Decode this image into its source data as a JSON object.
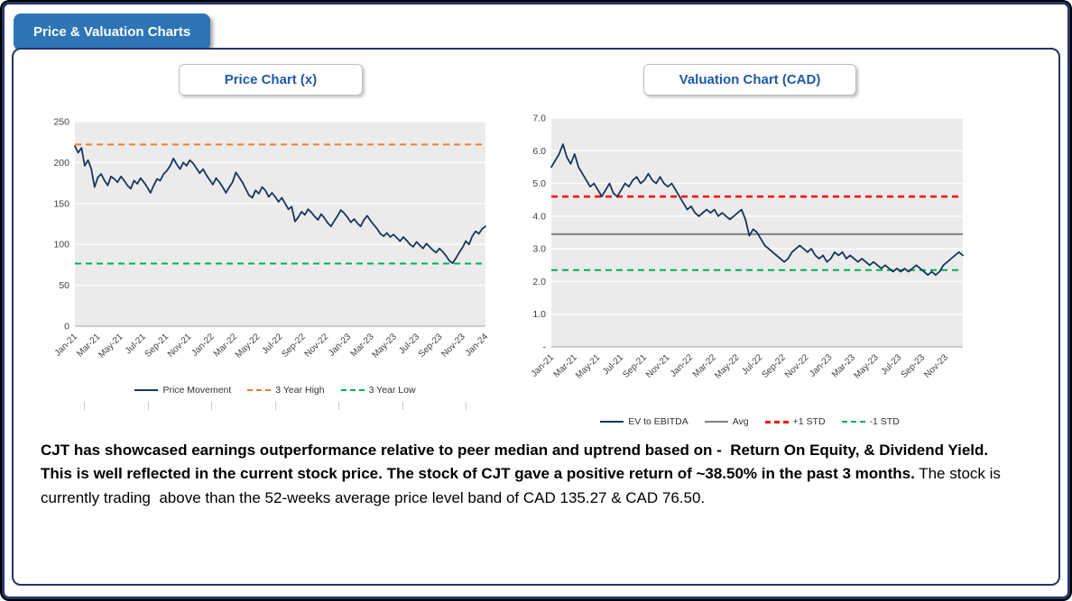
{
  "badge_label": "Price & Valuation Charts",
  "colors": {
    "accent_blue": "#2E75B6",
    "title_blue": "#1F5AA8",
    "border_navy": "#24356B",
    "series_navy": "#16365C",
    "high_orange": "#ED7D31",
    "low_green": "#00B050",
    "std_red": "#FF0000",
    "avg_gray": "#808080"
  },
  "commentary": {
    "bold": "CJT has showcased earnings outperformance relative to peer median and uptrend based on -  Return On Equity, & Dividend Yield. This is well reflected in the current stock price. The stock of CJT gave a positive return of ~38.50% in the past 3 months.",
    "regular": " The stock is currently trading  above than the 52-weeks average price level band of CAD 135.27 & CAD 76.50."
  },
  "chart_data": [
    {
      "type": "line",
      "title": "Price Chart (x)",
      "x_tick_labels": [
        "Jan-21",
        "Mar-21",
        "May-21",
        "Jul-21",
        "Sep-21",
        "Nov-21",
        "Jan-22",
        "Mar-22",
        "May-22",
        "Jul-22",
        "Sep-22",
        "Nov-22",
        "Jan-23",
        "Mar-23",
        "May-23",
        "Jul-23",
        "Sep-23",
        "Nov-23",
        "Jan-24"
      ],
      "x_tail": 0,
      "ylim": [
        0,
        250
      ],
      "y_ticks": [
        0,
        50,
        100,
        150,
        200,
        250
      ],
      "y_tick_labels": [
        "0",
        "50",
        "100",
        "150",
        "200",
        "250"
      ],
      "grid": true,
      "legend_position": "bottom",
      "series": [
        {
          "name": "Price Movement",
          "color": "#16365C",
          "values": [
            220,
            212,
            218,
            196,
            203,
            192,
            170,
            182,
            186,
            178,
            172,
            183,
            180,
            176,
            183,
            178,
            172,
            168,
            178,
            174,
            181,
            176,
            170,
            163,
            172,
            180,
            178,
            186,
            190,
            196,
            205,
            198,
            192,
            200,
            196,
            203,
            199,
            193,
            187,
            192,
            185,
            179,
            173,
            181,
            176,
            170,
            163,
            170,
            176,
            188,
            182,
            176,
            168,
            160,
            157,
            166,
            162,
            170,
            166,
            158,
            163,
            158,
            152,
            157,
            150,
            143,
            146,
            128,
            133,
            140,
            136,
            143,
            139,
            134,
            130,
            137,
            132,
            126,
            122,
            129,
            135,
            142,
            138,
            133,
            127,
            131,
            126,
            122,
            130,
            135,
            129,
            124,
            119,
            113,
            110,
            114,
            109,
            112,
            108,
            104,
            109,
            105,
            100,
            97,
            103,
            99,
            95,
            101,
            97,
            93,
            90,
            95,
            91,
            86,
            80,
            77,
            83,
            90,
            96,
            104,
            100,
            110,
            116,
            113,
            119,
            122
          ]
        }
      ],
      "ref_lines": [
        {
          "name": "3 Year High",
          "value": 222,
          "color": "#ED7D31",
          "dash": true,
          "width": 2
        },
        {
          "name": "3 Year Low",
          "value": 76.5,
          "color": "#00B050",
          "dash": true,
          "width": 2
        }
      ]
    },
    {
      "type": "line",
      "title": "Valuation Chart (CAD)",
      "x_tick_labels": [
        "Jan-21",
        "Mar-21",
        "May-21",
        "Jul-21",
        "Sep-21",
        "Nov-21",
        "Jan-22",
        "Mar-22",
        "May-22",
        "Jul-22",
        "Sep-22",
        "Nov-22",
        "Jan-23",
        "Mar-23",
        "May-23",
        "Jul-23",
        "Sep-23",
        "Nov-23"
      ],
      "x_tail": 0.75,
      "ylim": [
        0,
        7
      ],
      "y_ticks": [
        0,
        1,
        2,
        3,
        4,
        5,
        6,
        7
      ],
      "y_tick_labels": [
        "-",
        "1.0",
        "2.0",
        "3.0",
        "4.0",
        "5.0",
        "6.0",
        "7.0"
      ],
      "grid": true,
      "legend_position": "bottom",
      "series": [
        {
          "name": "EV to EBITDA",
          "color": "#16365C",
          "values": [
            5.5,
            5.7,
            5.9,
            6.2,
            5.8,
            5.6,
            5.9,
            5.5,
            5.3,
            5.1,
            4.9,
            5.0,
            4.8,
            4.6,
            4.8,
            5.0,
            4.7,
            4.6,
            4.8,
            5.0,
            4.9,
            5.1,
            5.2,
            5.0,
            5.1,
            5.3,
            5.1,
            5.0,
            5.2,
            5.0,
            4.9,
            5.0,
            4.8,
            4.6,
            4.4,
            4.2,
            4.3,
            4.1,
            4.0,
            4.1,
            4.2,
            4.1,
            4.2,
            4.0,
            4.1,
            4.0,
            3.9,
            4.0,
            4.1,
            4.2,
            3.9,
            3.4,
            3.6,
            3.5,
            3.3,
            3.1,
            3.0,
            2.9,
            2.8,
            2.7,
            2.6,
            2.7,
            2.9,
            3.0,
            3.1,
            3.0,
            2.9,
            3.0,
            2.8,
            2.7,
            2.8,
            2.6,
            2.7,
            2.9,
            2.8,
            2.9,
            2.7,
            2.8,
            2.7,
            2.6,
            2.7,
            2.6,
            2.5,
            2.6,
            2.5,
            2.4,
            2.5,
            2.4,
            2.3,
            2.4,
            2.3,
            2.4,
            2.3,
            2.4,
            2.5,
            2.4,
            2.3,
            2.2,
            2.3,
            2.2,
            2.3,
            2.5,
            2.6,
            2.7,
            2.8,
            2.9,
            2.8
          ]
        }
      ],
      "ref_lines": [
        {
          "name": "Avg",
          "value": 3.45,
          "color": "#808080",
          "dash": false,
          "width": 2
        },
        {
          "name": "+1 STD",
          "value": 4.6,
          "color": "#FF0000",
          "dash": true,
          "width": 2.5
        },
        {
          "name": "-1 STD",
          "value": 2.35,
          "color": "#00B050",
          "dash": true,
          "width": 2
        }
      ]
    }
  ]
}
